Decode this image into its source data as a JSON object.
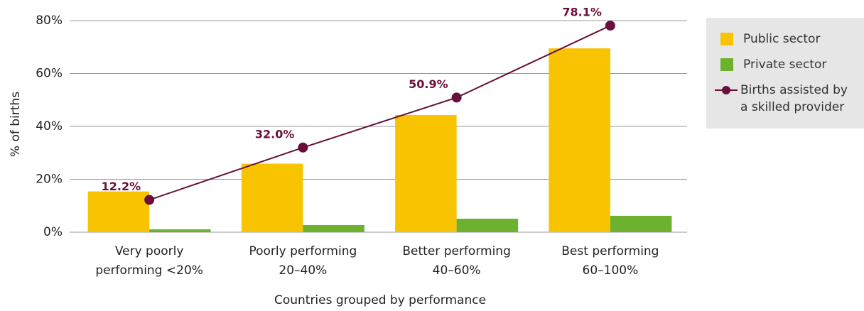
{
  "chart_data": {
    "type": "bar",
    "categories": [
      [
        "Very poorly",
        "performing <20%"
      ],
      [
        "Poorly performing",
        "20–40%"
      ],
      [
        "Better performing",
        "40–60%"
      ],
      [
        "Best performing",
        "60–100%"
      ]
    ],
    "series": [
      {
        "name": "Public sector",
        "color": "#f8c300",
        "values": [
          15.4,
          25.9,
          44.3,
          69.5
        ]
      },
      {
        "name": "Private sector",
        "color": "#6cb22f",
        "values": [
          1.1,
          2.7,
          5.1,
          6.2
        ]
      },
      {
        "name": "Births assisted by a skilled provider",
        "type": "line",
        "color": "#6a0f3b",
        "values": [
          12.2,
          32.0,
          50.9,
          78.1
        ],
        "value_labels": [
          "12.2%",
          "32.0%",
          "50.9%",
          "78.1%"
        ]
      }
    ],
    "ylabel": "% of births",
    "xlabel": "Countries grouped by performance",
    "ylim": [
      0,
      80
    ],
    "yticks": [
      {
        "value": 0,
        "label": "0%"
      },
      {
        "value": 20,
        "label": "20%"
      },
      {
        "value": 40,
        "label": "40%"
      },
      {
        "value": 60,
        "label": "60%"
      },
      {
        "value": 80,
        "label": "80%"
      }
    ],
    "grid": true,
    "legend": "right"
  }
}
